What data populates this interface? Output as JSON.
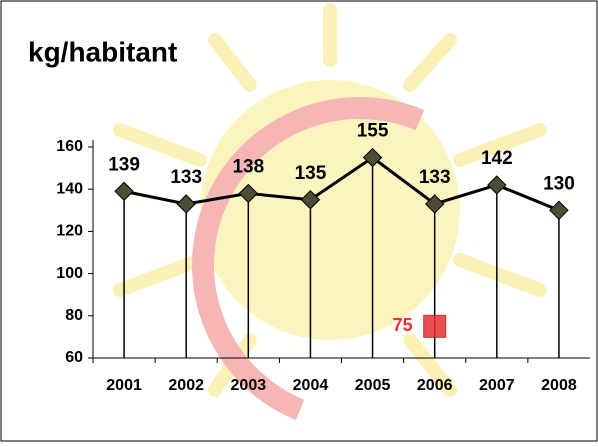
{
  "chart_data": {
    "type": "line",
    "title": "kg/habitant",
    "categories": [
      "2001",
      "2002",
      "2003",
      "2004",
      "2005",
      "2006",
      "2007",
      "2008"
    ],
    "series": [
      {
        "color": "#000000",
        "marker_color": "#4d4d33",
        "values": [
          139,
          133,
          138,
          135,
          155,
          133,
          142,
          130
        ]
      },
      {
        "color": "#e8312f",
        "values": [
          null,
          null,
          null,
          null,
          null,
          75,
          null,
          null
        ]
      }
    ],
    "ylim": [
      60,
      160
    ],
    "yticks": [
      60,
      80,
      100,
      120,
      140,
      160
    ],
    "drop_lines": true
  }
}
